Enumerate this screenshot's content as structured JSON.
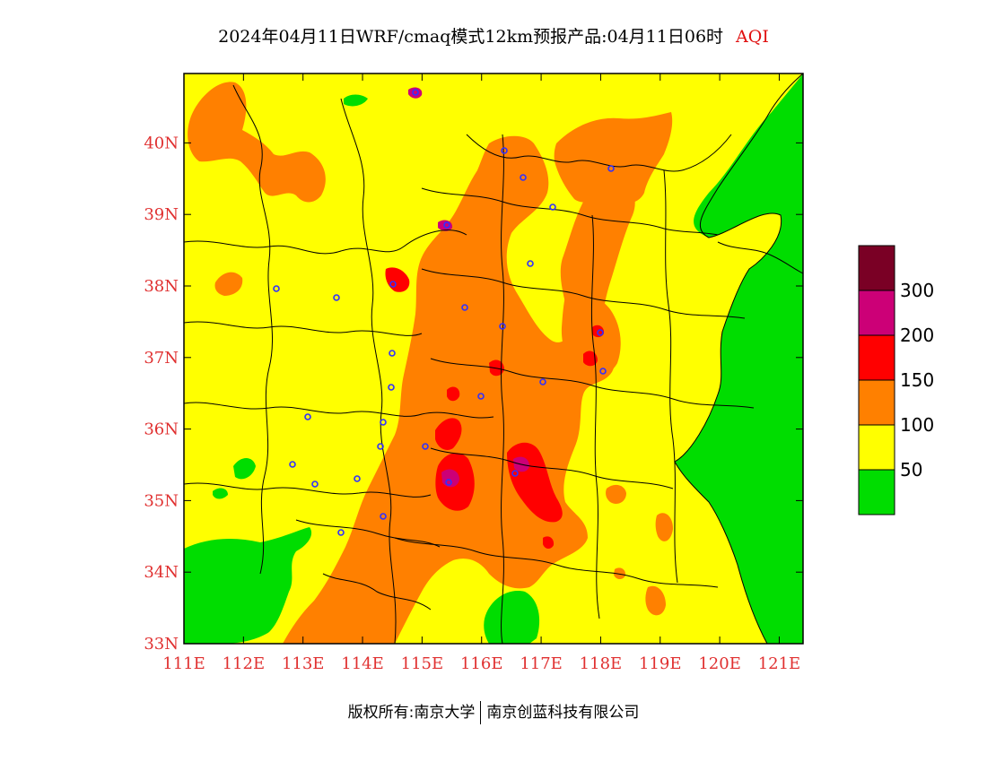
{
  "title": {
    "main": "2024年04月11日WRF/cmaq模式12km预报产品:04月11日06时",
    "variable": "AQI"
  },
  "chart_data": {
    "type": "heatmap",
    "variable": "AQI",
    "xlim": [
      111,
      121.4
    ],
    "ylim": [
      33,
      40.97
    ],
    "x_ticks": [
      "111E",
      "112E",
      "113E",
      "114E",
      "115E",
      "116E",
      "117E",
      "118E",
      "119E",
      "120E",
      "121E"
    ],
    "y_ticks": [
      "33N",
      "34N",
      "35N",
      "36N",
      "37N",
      "38N",
      "39N",
      "40N"
    ],
    "legend": {
      "position": "right",
      "thresholds": [
        "50",
        "100",
        "150",
        "200",
        "300"
      ],
      "classes": [
        {
          "range": "0-50",
          "color": "#00dd00"
        },
        {
          "range": "50-100",
          "color": "#ffff00"
        },
        {
          "range": "100-150",
          "color": "#ff8000"
        },
        {
          "range": "150-200",
          "color": "#ff0000"
        },
        {
          "range": "200-300",
          "color": "#cc0077"
        },
        {
          "range": ">300",
          "color": "#7a0025"
        }
      ]
    }
  },
  "colors": {
    "good": "#00dd00",
    "moderate": "#ffff00",
    "sensitive": "#ff8000",
    "unhealthy": "#ff0000",
    "very_unhealthy": "#cc0077",
    "hazardous": "#7a0025",
    "tick_text": "#e03030",
    "station_marker": "#3030ff"
  },
  "footer": {
    "copyright": "版权所有:南京大学",
    "company": "南京创蓝科技有限公司"
  }
}
